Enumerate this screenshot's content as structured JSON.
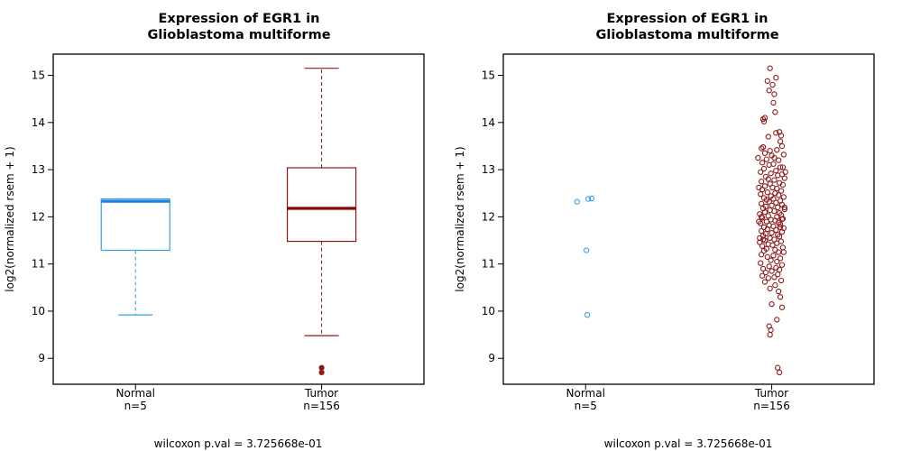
{
  "chart_data": [
    {
      "type": "box",
      "title_lines": [
        "Expression of EGR1 in",
        "Glioblastoma multiforme"
      ],
      "ylabel": "log2(normalized rsem + 1)",
      "ylim": [
        8.45,
        15.45
      ],
      "yticks": [
        9,
        10,
        11,
        12,
        13,
        14,
        15
      ],
      "grid": false,
      "groups": [
        {
          "name": "Normal",
          "n_label": "n=5",
          "color": "#3a9ee4",
          "median_color": "#1f7fe0",
          "whisker_low": 9.92,
          "q1": 11.29,
          "median": 12.33,
          "q3": 12.38,
          "whisker_high": 12.38,
          "outliers": []
        },
        {
          "name": "Tumor",
          "n_label": "n=156",
          "color": "#8b1a1a",
          "median_color": "#8b0000",
          "whisker_low": 9.48,
          "q1": 11.48,
          "median": 12.18,
          "q3": 13.04,
          "whisker_high": 15.15,
          "outliers": [
            8.8,
            8.7
          ]
        }
      ],
      "footnote": "wilcoxon p.val = 3.725668e-01"
    },
    {
      "type": "scatter",
      "title_lines": [
        "Expression of EGR1 in",
        "Glioblastoma multiforme"
      ],
      "ylabel": "log2(normalized rsem + 1)",
      "ylim": [
        8.45,
        15.45
      ],
      "yticks": [
        9,
        10,
        11,
        12,
        13,
        14,
        15
      ],
      "grid": false,
      "groups": [
        {
          "name": "Normal",
          "n_label": "n=5",
          "color": "#3a9ee4",
          "points": [
            [
              -0.1,
              12.32
            ],
            [
              0.03,
              12.38
            ],
            [
              0.07,
              12.39
            ],
            [
              0.01,
              11.29
            ],
            [
              0.02,
              9.92
            ]
          ]
        },
        {
          "name": "Tumor",
          "n_label": "n=156",
          "color": "#8b1a1a",
          "points": [
            [
              -0.02,
              15.15
            ],
            [
              0.05,
              14.95
            ],
            [
              -0.05,
              14.88
            ],
            [
              0.01,
              14.8
            ],
            [
              0.03,
              14.6
            ],
            [
              -0.03,
              14.68
            ],
            [
              0.02,
              14.42
            ],
            [
              0.04,
              14.22
            ],
            [
              -0.08,
              14.1
            ],
            [
              -0.1,
              14.07
            ],
            [
              -0.09,
              14.02
            ],
            [
              0.05,
              13.78
            ],
            [
              0.09,
              13.8
            ],
            [
              -0.04,
              13.7
            ],
            [
              0.11,
              13.72
            ],
            [
              0.1,
              13.6
            ],
            [
              0.12,
              13.5
            ],
            [
              -0.1,
              13.48
            ],
            [
              -0.12,
              13.45
            ],
            [
              -0.02,
              13.4
            ],
            [
              0.06,
              13.42
            ],
            [
              -0.08,
              13.35
            ],
            [
              0.14,
              13.32
            ],
            [
              0.0,
              13.3
            ],
            [
              0.03,
              13.25
            ],
            [
              -0.06,
              13.22
            ],
            [
              0.08,
              13.2
            ],
            [
              -0.11,
              13.15
            ],
            [
              0.02,
              13.12
            ],
            [
              -0.03,
              13.1
            ],
            [
              0.1,
              13.05
            ],
            [
              -0.09,
              13.02
            ],
            [
              0.05,
              12.98
            ],
            [
              -0.13,
              12.95
            ],
            [
              0.12,
              12.9
            ],
            [
              -0.01,
              12.92
            ],
            [
              0.07,
              12.88
            ],
            [
              -0.07,
              12.85
            ],
            [
              0.15,
              12.82
            ],
            [
              -0.04,
              12.8
            ],
            [
              0.03,
              12.78
            ],
            [
              -0.12,
              12.75
            ],
            [
              0.09,
              12.72
            ],
            [
              -0.02,
              12.7
            ],
            [
              0.13,
              12.68
            ],
            [
              -0.08,
              12.65
            ],
            [
              0.01,
              12.62
            ],
            [
              0.06,
              12.6
            ],
            [
              -0.11,
              12.58
            ],
            [
              0.11,
              12.55
            ],
            [
              -0.05,
              12.52
            ],
            [
              0.04,
              12.5
            ],
            [
              -0.13,
              12.48
            ],
            [
              0.08,
              12.46
            ],
            [
              -0.01,
              12.44
            ],
            [
              0.14,
              12.42
            ],
            [
              -0.09,
              12.4
            ],
            [
              0.02,
              12.38
            ],
            [
              -0.06,
              12.36
            ],
            [
              0.1,
              12.34
            ],
            [
              -0.03,
              12.32
            ],
            [
              0.05,
              12.3
            ],
            [
              -0.12,
              12.28
            ],
            [
              0.12,
              12.26
            ],
            [
              0.0,
              12.24
            ],
            [
              -0.07,
              12.22
            ],
            [
              0.07,
              12.2
            ],
            [
              -0.1,
              12.18
            ],
            [
              0.15,
              12.16
            ],
            [
              -0.02,
              12.14
            ],
            [
              0.03,
              12.12
            ],
            [
              -0.08,
              12.1
            ],
            [
              0.09,
              12.08
            ],
            [
              -0.14,
              12.06
            ],
            [
              0.11,
              12.04
            ],
            [
              -0.04,
              12.02
            ],
            [
              0.06,
              12.0
            ],
            [
              -0.11,
              11.98
            ],
            [
              0.13,
              11.96
            ],
            [
              -0.01,
              11.94
            ],
            [
              0.04,
              11.92
            ],
            [
              -0.06,
              11.9
            ],
            [
              0.08,
              11.88
            ],
            [
              -0.13,
              11.86
            ],
            [
              0.1,
              11.84
            ],
            [
              -0.03,
              11.82
            ],
            [
              0.02,
              11.8
            ],
            [
              -0.09,
              11.78
            ],
            [
              0.14,
              11.76
            ],
            [
              -0.05,
              11.74
            ],
            [
              0.05,
              11.72
            ],
            [
              -0.12,
              11.7
            ],
            [
              0.12,
              11.68
            ],
            [
              0.0,
              11.66
            ],
            [
              -0.07,
              11.64
            ],
            [
              0.07,
              11.62
            ],
            [
              -0.1,
              11.6
            ],
            [
              0.09,
              11.58
            ],
            [
              -0.02,
              11.55
            ],
            [
              0.03,
              11.52
            ],
            [
              -0.08,
              11.5
            ],
            [
              0.11,
              11.48
            ],
            [
              -0.14,
              11.46
            ],
            [
              0.06,
              11.44
            ],
            [
              -0.04,
              11.42
            ],
            [
              0.01,
              11.4
            ],
            [
              -0.11,
              11.38
            ],
            [
              0.13,
              11.35
            ],
            [
              -0.06,
              11.32
            ],
            [
              0.04,
              11.3
            ],
            [
              -0.09,
              11.28
            ],
            [
              0.08,
              11.25
            ],
            [
              -0.12,
              11.2
            ],
            [
              0.02,
              11.18
            ],
            [
              -0.05,
              11.15
            ],
            [
              0.1,
              11.12
            ],
            [
              -0.01,
              11.08
            ],
            [
              0.06,
              11.05
            ],
            [
              -0.13,
              11.02
            ],
            [
              0.12,
              10.98
            ],
            [
              -0.03,
              10.95
            ],
            [
              0.05,
              10.92
            ],
            [
              -0.1,
              10.9
            ],
            [
              0.09,
              10.88
            ],
            [
              0.0,
              10.85
            ],
            [
              -0.07,
              10.82
            ],
            [
              0.07,
              10.78
            ],
            [
              -0.11,
              10.75
            ],
            [
              0.03,
              10.72
            ],
            [
              -0.04,
              10.7
            ],
            [
              0.11,
              10.65
            ],
            [
              -0.08,
              10.62
            ],
            [
              0.04,
              10.55
            ],
            [
              -0.02,
              10.48
            ],
            [
              0.08,
              10.42
            ],
            [
              0.1,
              10.3
            ],
            [
              0.12,
              10.08
            ],
            [
              0.0,
              10.15
            ],
            [
              0.06,
              9.82
            ],
            [
              -0.03,
              9.68
            ],
            [
              -0.01,
              9.6
            ],
            [
              -0.02,
              9.5
            ],
            [
              0.07,
              8.8
            ],
            [
              0.09,
              8.7
            ],
            [
              -0.15,
              12.62
            ],
            [
              0.15,
              12.2
            ],
            [
              -0.14,
              11.55
            ],
            [
              0.14,
              11.25
            ],
            [
              -0.15,
              11.9
            ],
            [
              0.16,
              12.95
            ],
            [
              -0.16,
              13.25
            ],
            [
              0.13,
              13.05
            ],
            [
              -0.12,
              12.0
            ],
            [
              0.12,
              11.95
            ],
            [
              -0.1,
              11.52
            ],
            [
              0.1,
              11.78
            ]
          ]
        }
      ],
      "footnote": "wilcoxon p.val = 3.725668e-01"
    }
  ]
}
